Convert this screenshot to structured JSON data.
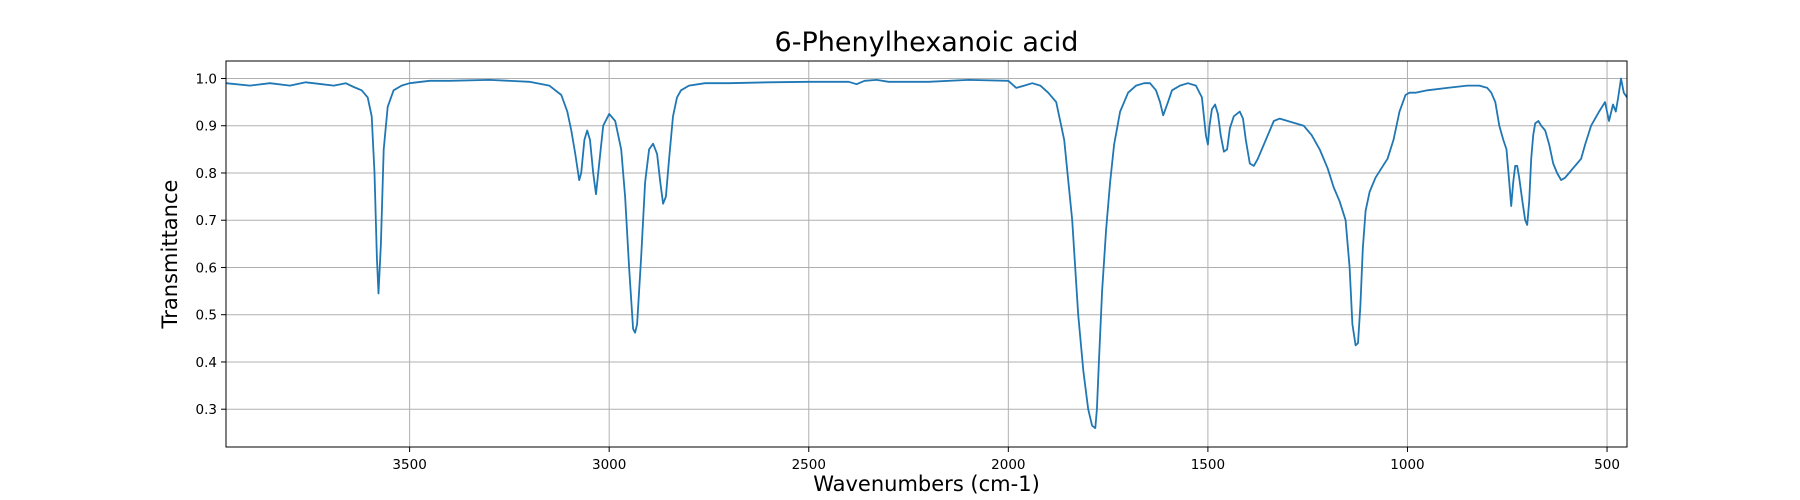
{
  "chart_data": {
    "type": "line",
    "title": "6-Phenylhexanoic acid",
    "xlabel": "Wavenumbers (cm-1)",
    "ylabel": "Transmittance",
    "xlim": [
      3960,
      450
    ],
    "ylim": [
      0.22,
      1.037
    ],
    "x_inverted": true,
    "grid": true,
    "legend": "none",
    "xticks": [
      3500,
      3000,
      2500,
      2000,
      1500,
      1000,
      500
    ],
    "xtick_labels": [
      "3500",
      "3000",
      "2500",
      "2000",
      "1500",
      "1000",
      "500"
    ],
    "yticks": [
      0.3,
      0.4,
      0.5,
      0.6,
      0.7,
      0.8,
      0.9,
      1.0
    ],
    "ytick_labels": [
      "0.3",
      "0.4",
      "0.5",
      "0.6",
      "0.7",
      "0.8",
      "0.9",
      "1.0"
    ],
    "series": [
      {
        "color": "#1f77b4",
        "x": [
          3960,
          3900,
          3850,
          3800,
          3760,
          3720,
          3690,
          3660,
          3640,
          3620,
          3605,
          3595,
          3588,
          3582,
          3578,
          3572,
          3565,
          3555,
          3540,
          3520,
          3500,
          3450,
          3400,
          3300,
          3200,
          3150,
          3120,
          3105,
          3095,
          3085,
          3075,
          3070,
          3062,
          3055,
          3048,
          3040,
          3033,
          3025,
          3015,
          3000,
          2985,
          2970,
          2960,
          2950,
          2940,
          2935,
          2930,
          2920,
          2910,
          2900,
          2890,
          2880,
          2872,
          2865,
          2858,
          2850,
          2840,
          2830,
          2820,
          2800,
          2760,
          2700,
          2600,
          2500,
          2400,
          2380,
          2360,
          2330,
          2300,
          2200,
          2100,
          2000,
          1980,
          1960,
          1940,
          1920,
          1900,
          1880,
          1860,
          1840,
          1825,
          1812,
          1800,
          1790,
          1782,
          1778,
          1773,
          1765,
          1755,
          1745,
          1735,
          1720,
          1700,
          1680,
          1660,
          1645,
          1630,
          1620,
          1612,
          1600,
          1590,
          1570,
          1550,
          1530,
          1515,
          1505,
          1500,
          1496,
          1490,
          1482,
          1475,
          1468,
          1460,
          1452,
          1445,
          1435,
          1420,
          1412,
          1405,
          1395,
          1385,
          1375,
          1365,
          1350,
          1335,
          1320,
          1300,
          1280,
          1260,
          1240,
          1220,
          1200,
          1185,
          1170,
          1155,
          1145,
          1138,
          1130,
          1124,
          1118,
          1112,
          1105,
          1095,
          1080,
          1065,
          1050,
          1035,
          1020,
          1005,
          995,
          980,
          950,
          900,
          850,
          820,
          800,
          790,
          780,
          770,
          760,
          752,
          745,
          740,
          735,
          730,
          725,
          720,
          712,
          705,
          700,
          695,
          690,
          685,
          680,
          672,
          665,
          655,
          645,
          635,
          625,
          615,
          605,
          595,
          585,
          575,
          565,
          555,
          540,
          520,
          505,
          495,
          485,
          478,
          472,
          465,
          458,
          450
        ],
        "y": [
          0.99,
          0.985,
          0.99,
          0.985,
          0.992,
          0.988,
          0.985,
          0.99,
          0.982,
          0.975,
          0.96,
          0.92,
          0.8,
          0.62,
          0.545,
          0.65,
          0.85,
          0.94,
          0.975,
          0.985,
          0.99,
          0.995,
          0.995,
          0.997,
          0.993,
          0.985,
          0.965,
          0.93,
          0.89,
          0.84,
          0.785,
          0.8,
          0.87,
          0.89,
          0.87,
          0.8,
          0.755,
          0.82,
          0.9,
          0.925,
          0.91,
          0.85,
          0.75,
          0.6,
          0.47,
          0.462,
          0.48,
          0.62,
          0.78,
          0.85,
          0.862,
          0.84,
          0.78,
          0.735,
          0.75,
          0.83,
          0.92,
          0.96,
          0.975,
          0.985,
          0.99,
          0.99,
          0.992,
          0.993,
          0.993,
          0.988,
          0.995,
          0.997,
          0.993,
          0.993,
          0.997,
          0.995,
          0.98,
          0.985,
          0.99,
          0.985,
          0.97,
          0.95,
          0.87,
          0.7,
          0.5,
          0.38,
          0.3,
          0.265,
          0.26,
          0.3,
          0.4,
          0.55,
          0.68,
          0.78,
          0.86,
          0.93,
          0.97,
          0.985,
          0.99,
          0.99,
          0.975,
          0.95,
          0.922,
          0.95,
          0.975,
          0.985,
          0.99,
          0.985,
          0.96,
          0.88,
          0.86,
          0.9,
          0.935,
          0.945,
          0.925,
          0.88,
          0.845,
          0.85,
          0.895,
          0.92,
          0.93,
          0.915,
          0.87,
          0.82,
          0.815,
          0.83,
          0.85,
          0.88,
          0.91,
          0.915,
          0.91,
          0.905,
          0.9,
          0.88,
          0.85,
          0.81,
          0.77,
          0.74,
          0.7,
          0.6,
          0.48,
          0.435,
          0.44,
          0.52,
          0.64,
          0.72,
          0.76,
          0.79,
          0.81,
          0.83,
          0.87,
          0.93,
          0.965,
          0.97,
          0.97,
          0.975,
          0.98,
          0.985,
          0.985,
          0.98,
          0.97,
          0.95,
          0.9,
          0.87,
          0.85,
          0.78,
          0.73,
          0.78,
          0.815,
          0.815,
          0.79,
          0.74,
          0.7,
          0.69,
          0.74,
          0.83,
          0.88,
          0.905,
          0.91,
          0.9,
          0.89,
          0.86,
          0.82,
          0.8,
          0.785,
          0.79,
          0.8,
          0.81,
          0.82,
          0.83,
          0.86,
          0.9,
          0.93,
          0.95,
          0.91,
          0.945,
          0.93,
          0.96,
          1.0,
          0.97,
          0.96
        ]
      }
    ]
  }
}
